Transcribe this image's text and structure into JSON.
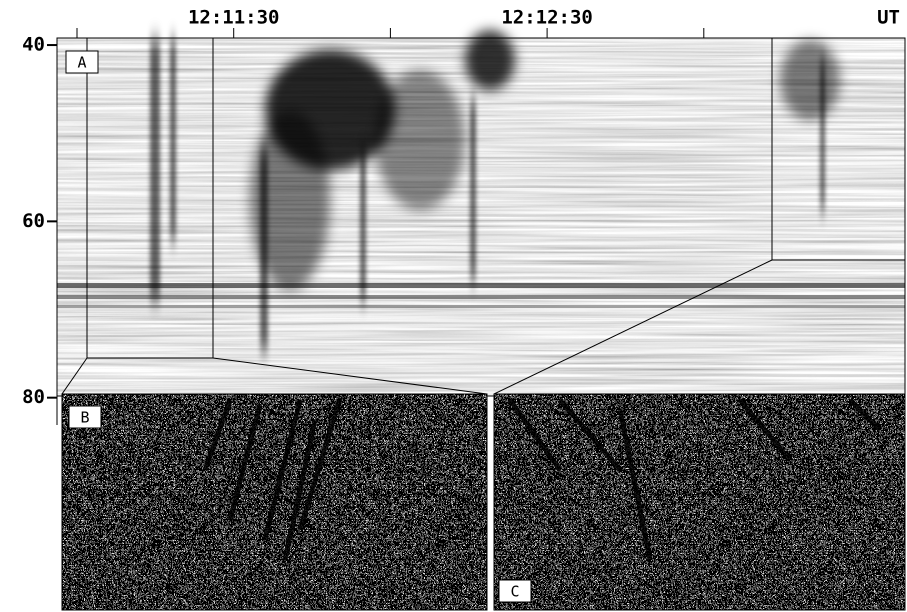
{
  "chart_data": {
    "type": "spectrogram",
    "x_unit": "UT",
    "xticks": [
      null,
      "12:11:30",
      null,
      "12:12:30",
      null
    ],
    "ylim": [
      39.2,
      83.1
    ],
    "yticks": [
      40,
      60,
      80
    ],
    "panels": [
      "A",
      "B",
      "C"
    ]
  }
}
